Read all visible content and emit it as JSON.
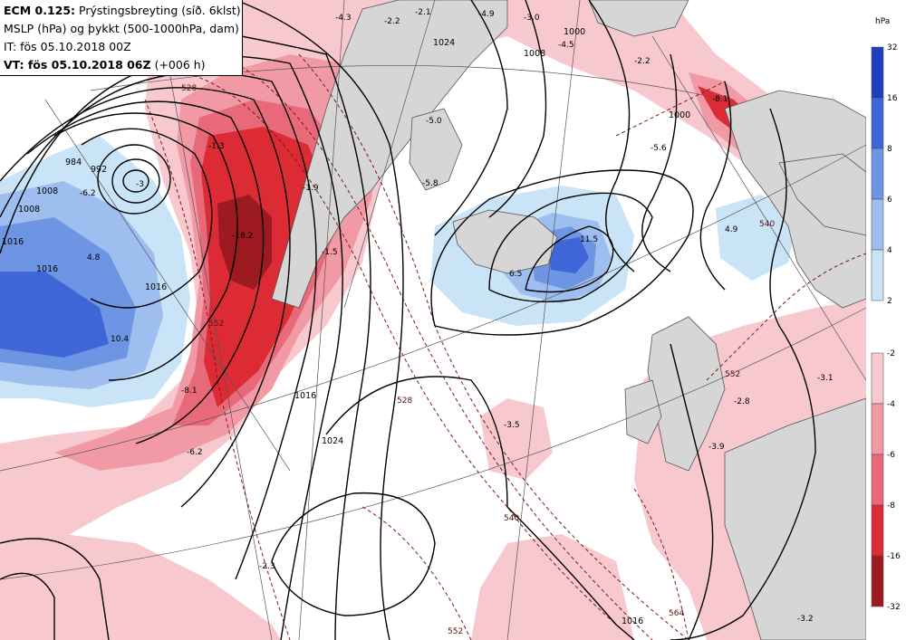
{
  "header": {
    "model": "ECM 0.125:",
    "product": "Prýstingsbreyting (síð. 6klst)",
    "line2": "MSLP (hPa) og þykkt (500-1000hPa, dam)",
    "line3": "IT: fös 05.10.2018 00Z",
    "vt_label": "VT: fös 05.10.2018 06Z",
    "vt_offset": "(+006 h)"
  },
  "legend": {
    "unit": "hPa",
    "rise_ticks": [
      "32",
      "16",
      "8",
      "6",
      "4",
      "2"
    ],
    "fall_ticks": [
      "-2",
      "-4",
      "-6",
      "-8",
      "-16",
      "-32"
    ],
    "rise_colors": [
      "#1f3fbf",
      "#3f66d6",
      "#6e95e3",
      "#9dbeee",
      "#c9e3f7"
    ],
    "fall_colors": [
      "#f8c8cf",
      "#f19aa6",
      "#e8697a",
      "#dc2b35",
      "#9c1a20"
    ]
  },
  "map": {
    "pressure_labels": [
      "1024",
      "1008",
      "1000",
      "1000",
      "992",
      "984",
      "1008",
      "1016",
      "1008",
      "1016",
      "1024",
      "1016",
      "1016",
      "1016"
    ],
    "isallobar_labels": [
      "-4.3",
      "-2.2",
      "-2.1",
      "-4.9",
      "-3.0",
      "-4.5",
      "-2.2",
      "-5.0",
      "-5.8",
      "-1.9",
      "-5.6",
      "-1.3",
      "-8.1",
      "-6.2",
      "-3",
      "-18.2",
      "-1.5",
      "11.5",
      "6.5",
      "4.8",
      "4.9",
      "10.4",
      "-8.1",
      "-6.2",
      "-3.5",
      "-2.8",
      "-3.9",
      "-3.1",
      "-2.3",
      "-3.2"
    ],
    "thickness_labels": [
      "528",
      "528",
      "540",
      "552",
      "552",
      "564",
      "540",
      "552"
    ]
  }
}
